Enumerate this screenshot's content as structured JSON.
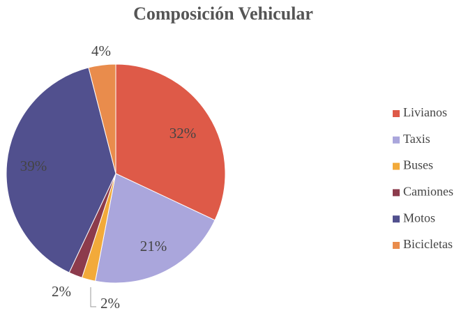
{
  "chart_data": {
    "type": "pie",
    "title": "Composición Vehicular",
    "categories": [
      "Livianos",
      "Taxis",
      "Buses",
      "Camiones",
      "Motos",
      "Bicicletas"
    ],
    "values": [
      32,
      21,
      2,
      2,
      39,
      4
    ],
    "value_labels": [
      "32%",
      "21%",
      "2%",
      "2%",
      "39%",
      "4%"
    ],
    "colors": [
      "#de5a48",
      "#aaa6dc",
      "#f2aa3a",
      "#8c3b4c",
      "#51508e",
      "#e98c4c"
    ],
    "legend": "right"
  }
}
